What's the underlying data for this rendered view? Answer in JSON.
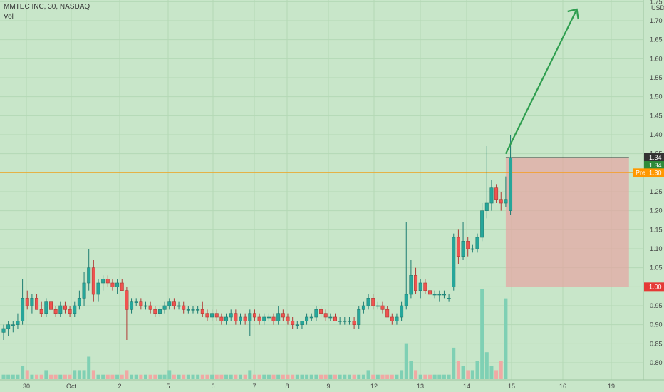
{
  "legend": {
    "symbol_line": "MMTEC INC, 30, NASDAQ",
    "vol_label": "Vol"
  },
  "price_axis": {
    "currency": "USD"
  },
  "tags": {
    "last_a": "1.34",
    "last_b": "1.34",
    "pre_label": "Pre",
    "pre_value": "1.30",
    "stop": "1.00"
  },
  "colors": {
    "up": "#26a69a",
    "down": "#ef5350",
    "background": "#c8e6c9",
    "arrow": "#2e9e4f",
    "pre": "#ff9800",
    "stop": "#e53935",
    "box": "#e8a0a0"
  },
  "chart_data": {
    "type": "candlestick",
    "ylim": [
      0.76,
      1.74
    ],
    "y_ticks": [
      0.8,
      0.85,
      0.9,
      0.95,
      1.0,
      1.05,
      1.1,
      1.15,
      1.2,
      1.25,
      1.3,
      1.35,
      1.4,
      1.45,
      1.5,
      1.55,
      1.6,
      1.65,
      1.7,
      1.75
    ],
    "x_tick_labels": [
      "30",
      "Oct",
      "2",
      "5",
      "6",
      "7",
      "8",
      "9",
      "12",
      "13",
      "14",
      "15",
      "16",
      "19"
    ],
    "candles": [
      {
        "o": 0.88,
        "h": 0.9,
        "l": 0.86,
        "c": 0.89
      },
      {
        "o": 0.89,
        "h": 0.91,
        "l": 0.87,
        "c": 0.9
      },
      {
        "o": 0.9,
        "h": 0.91,
        "l": 0.88,
        "c": 0.9
      },
      {
        "o": 0.9,
        "h": 0.93,
        "l": 0.89,
        "c": 0.91
      },
      {
        "o": 0.91,
        "h": 1.02,
        "l": 0.9,
        "c": 0.97
      },
      {
        "o": 0.97,
        "h": 0.99,
        "l": 0.94,
        "c": 0.95
      },
      {
        "o": 0.95,
        "h": 0.98,
        "l": 0.93,
        "c": 0.97
      },
      {
        "o": 0.97,
        "h": 0.98,
        "l": 0.94,
        "c": 0.94
      },
      {
        "o": 0.94,
        "h": 0.96,
        "l": 0.92,
        "c": 0.93
      },
      {
        "o": 0.93,
        "h": 0.97,
        "l": 0.92,
        "c": 0.96
      },
      {
        "o": 0.96,
        "h": 0.97,
        "l": 0.93,
        "c": 0.94
      },
      {
        "o": 0.94,
        "h": 0.95,
        "l": 0.92,
        "c": 0.93
      },
      {
        "o": 0.93,
        "h": 0.96,
        "l": 0.92,
        "c": 0.95
      },
      {
        "o": 0.95,
        "h": 0.96,
        "l": 0.93,
        "c": 0.94
      },
      {
        "o": 0.94,
        "h": 0.95,
        "l": 0.92,
        "c": 0.93
      },
      {
        "o": 0.93,
        "h": 0.96,
        "l": 0.92,
        "c": 0.95
      },
      {
        "o": 0.95,
        "h": 0.99,
        "l": 0.94,
        "c": 0.97
      },
      {
        "o": 0.97,
        "h": 1.04,
        "l": 0.95,
        "c": 1.01
      },
      {
        "o": 1.01,
        "h": 1.1,
        "l": 0.99,
        "c": 1.05
      },
      {
        "o": 1.05,
        "h": 1.07,
        "l": 0.96,
        "c": 0.98
      },
      {
        "o": 0.98,
        "h": 1.02,
        "l": 0.96,
        "c": 1.01
      },
      {
        "o": 1.01,
        "h": 1.03,
        "l": 0.99,
        "c": 1.02
      },
      {
        "o": 1.02,
        "h": 1.03,
        "l": 1.0,
        "c": 1.01
      },
      {
        "o": 1.01,
        "h": 1.02,
        "l": 0.99,
        "c": 1.0
      },
      {
        "o": 1.0,
        "h": 1.02,
        "l": 0.98,
        "c": 1.01
      },
      {
        "o": 1.01,
        "h": 1.02,
        "l": 0.99,
        "c": 0.99
      },
      {
        "o": 0.99,
        "h": 1.0,
        "l": 0.86,
        "c": 0.94
      },
      {
        "o": 0.94,
        "h": 0.97,
        "l": 0.93,
        "c": 0.96
      },
      {
        "o": 0.96,
        "h": 0.97,
        "l": 0.95,
        "c": 0.96
      },
      {
        "o": 0.96,
        "h": 0.97,
        "l": 0.94,
        "c": 0.95
      },
      {
        "o": 0.95,
        "h": 0.96,
        "l": 0.94,
        "c": 0.95
      },
      {
        "o": 0.95,
        "h": 0.96,
        "l": 0.93,
        "c": 0.94
      },
      {
        "o": 0.94,
        "h": 0.95,
        "l": 0.92,
        "c": 0.93
      },
      {
        "o": 0.93,
        "h": 0.95,
        "l": 0.92,
        "c": 0.94
      },
      {
        "o": 0.94,
        "h": 0.96,
        "l": 0.93,
        "c": 0.95
      },
      {
        "o": 0.95,
        "h": 0.97,
        "l": 0.94,
        "c": 0.96
      },
      {
        "o": 0.96,
        "h": 0.97,
        "l": 0.94,
        "c": 0.95
      },
      {
        "o": 0.95,
        "h": 0.96,
        "l": 0.94,
        "c": 0.95
      },
      {
        "o": 0.95,
        "h": 0.96,
        "l": 0.93,
        "c": 0.94
      },
      {
        "o": 0.94,
        "h": 0.95,
        "l": 0.93,
        "c": 0.94
      },
      {
        "o": 0.94,
        "h": 0.95,
        "l": 0.93,
        "c": 0.94
      },
      {
        "o": 0.94,
        "h": 0.95,
        "l": 0.93,
        "c": 0.94
      },
      {
        "o": 0.94,
        "h": 0.96,
        "l": 0.92,
        "c": 0.93
      },
      {
        "o": 0.93,
        "h": 0.94,
        "l": 0.91,
        "c": 0.92
      },
      {
        "o": 0.92,
        "h": 0.94,
        "l": 0.91,
        "c": 0.93
      },
      {
        "o": 0.93,
        "h": 0.94,
        "l": 0.91,
        "c": 0.92
      },
      {
        "o": 0.92,
        "h": 0.93,
        "l": 0.9,
        "c": 0.91
      },
      {
        "o": 0.91,
        "h": 0.93,
        "l": 0.9,
        "c": 0.92
      },
      {
        "o": 0.92,
        "h": 0.94,
        "l": 0.91,
        "c": 0.93
      },
      {
        "o": 0.93,
        "h": 0.94,
        "l": 0.9,
        "c": 0.91
      },
      {
        "o": 0.91,
        "h": 0.93,
        "l": 0.9,
        "c": 0.92
      },
      {
        "o": 0.92,
        "h": 0.93,
        "l": 0.9,
        "c": 0.91
      },
      {
        "o": 0.91,
        "h": 0.94,
        "l": 0.87,
        "c": 0.93
      },
      {
        "o": 0.93,
        "h": 0.94,
        "l": 0.91,
        "c": 0.92
      },
      {
        "o": 0.92,
        "h": 0.93,
        "l": 0.9,
        "c": 0.91
      },
      {
        "o": 0.91,
        "h": 0.93,
        "l": 0.9,
        "c": 0.92
      },
      {
        "o": 0.92,
        "h": 0.93,
        "l": 0.91,
        "c": 0.92
      },
      {
        "o": 0.92,
        "h": 0.93,
        "l": 0.9,
        "c": 0.91
      },
      {
        "o": 0.91,
        "h": 0.95,
        "l": 0.9,
        "c": 0.93
      },
      {
        "o": 0.93,
        "h": 0.94,
        "l": 0.91,
        "c": 0.92
      },
      {
        "o": 0.92,
        "h": 0.93,
        "l": 0.9,
        "c": 0.91
      },
      {
        "o": 0.91,
        "h": 0.92,
        "l": 0.89,
        "c": 0.9
      },
      {
        "o": 0.9,
        "h": 0.91,
        "l": 0.89,
        "c": 0.9
      },
      {
        "o": 0.9,
        "h": 0.91,
        "l": 0.89,
        "c": 0.91
      },
      {
        "o": 0.91,
        "h": 0.93,
        "l": 0.9,
        "c": 0.92
      },
      {
        "o": 0.92,
        "h": 0.93,
        "l": 0.91,
        "c": 0.92
      },
      {
        "o": 0.92,
        "h": 0.95,
        "l": 0.91,
        "c": 0.94
      },
      {
        "o": 0.94,
        "h": 0.95,
        "l": 0.92,
        "c": 0.93
      },
      {
        "o": 0.93,
        "h": 0.94,
        "l": 0.91,
        "c": 0.92
      },
      {
        "o": 0.92,
        "h": 0.93,
        "l": 0.91,
        "c": 0.92
      },
      {
        "o": 0.92,
        "h": 0.93,
        "l": 0.91,
        "c": 0.91
      },
      {
        "o": 0.91,
        "h": 0.92,
        "l": 0.9,
        "c": 0.91
      },
      {
        "o": 0.91,
        "h": 0.92,
        "l": 0.9,
        "c": 0.91
      },
      {
        "o": 0.91,
        "h": 0.92,
        "l": 0.9,
        "c": 0.91
      },
      {
        "o": 0.91,
        "h": 0.92,
        "l": 0.89,
        "c": 0.9
      },
      {
        "o": 0.9,
        "h": 0.95,
        "l": 0.89,
        "c": 0.94
      },
      {
        "o": 0.94,
        "h": 0.96,
        "l": 0.93,
        "c": 0.95
      },
      {
        "o": 0.95,
        "h": 0.98,
        "l": 0.94,
        "c": 0.97
      },
      {
        "o": 0.97,
        "h": 0.98,
        "l": 0.94,
        "c": 0.95
      },
      {
        "o": 0.95,
        "h": 0.96,
        "l": 0.94,
        "c": 0.95
      },
      {
        "o": 0.95,
        "h": 0.96,
        "l": 0.93,
        "c": 0.94
      },
      {
        "o": 0.94,
        "h": 0.95,
        "l": 0.92,
        "c": 0.92
      },
      {
        "o": 0.92,
        "h": 0.93,
        "l": 0.9,
        "c": 0.91
      },
      {
        "o": 0.91,
        "h": 0.93,
        "l": 0.9,
        "c": 0.92
      },
      {
        "o": 0.92,
        "h": 0.96,
        "l": 0.91,
        "c": 0.95
      },
      {
        "o": 0.95,
        "h": 1.17,
        "l": 0.94,
        "c": 0.98
      },
      {
        "o": 0.98,
        "h": 1.07,
        "l": 0.97,
        "c": 1.03
      },
      {
        "o": 1.03,
        "h": 1.05,
        "l": 0.98,
        "c": 0.99
      },
      {
        "o": 0.99,
        "h": 1.02,
        "l": 0.97,
        "c": 1.01
      },
      {
        "o": 1.01,
        "h": 1.02,
        "l": 0.98,
        "c": 0.99
      },
      {
        "o": 0.99,
        "h": 1.0,
        "l": 0.97,
        "c": 0.98
      },
      {
        "o": 0.98,
        "h": 0.99,
        "l": 0.97,
        "c": 0.98
      },
      {
        "o": 0.98,
        "h": 0.99,
        "l": 0.96,
        "c": 0.98
      },
      {
        "o": 0.98,
        "h": 0.99,
        "l": 0.97,
        "c": 0.98
      },
      {
        "o": 0.97,
        "h": 0.98,
        "l": 0.96,
        "c": 0.97
      },
      {
        "o": 1.0,
        "h": 1.14,
        "l": 0.99,
        "c": 1.13
      },
      {
        "o": 1.13,
        "h": 1.15,
        "l": 1.06,
        "c": 1.08
      },
      {
        "o": 1.08,
        "h": 1.17,
        "l": 1.07,
        "c": 1.12
      },
      {
        "o": 1.12,
        "h": 1.13,
        "l": 1.08,
        "c": 1.1
      },
      {
        "o": 1.1,
        "h": 1.11,
        "l": 1.09,
        "c": 1.1
      },
      {
        "o": 1.1,
        "h": 1.14,
        "l": 1.09,
        "c": 1.13
      },
      {
        "o": 1.13,
        "h": 1.22,
        "l": 1.12,
        "c": 1.2
      },
      {
        "o": 1.2,
        "h": 1.37,
        "l": 1.18,
        "c": 1.22
      },
      {
        "o": 1.22,
        "h": 1.28,
        "l": 1.2,
        "c": 1.26
      },
      {
        "o": 1.26,
        "h": 1.27,
        "l": 1.22,
        "c": 1.23
      },
      {
        "o": 1.23,
        "h": 1.25,
        "l": 1.2,
        "c": 1.22
      },
      {
        "o": 1.22,
        "h": 1.29,
        "l": 1.21,
        "c": 1.23
      },
      {
        "o": 1.2,
        "h": 1.4,
        "l": 1.19,
        "c": 1.34
      }
    ],
    "volume": [
      1,
      1,
      1,
      1,
      3,
      2,
      1,
      1,
      1,
      2,
      1,
      1,
      1,
      1,
      1,
      2,
      2,
      2,
      5,
      2,
      1,
      1,
      1,
      1,
      1,
      1,
      2,
      1,
      1,
      1,
      1,
      1,
      1,
      1,
      1,
      2,
      1,
      1,
      1,
      1,
      1,
      1,
      1,
      1,
      1,
      1,
      1,
      1,
      1,
      1,
      1,
      1,
      2,
      1,
      1,
      1,
      1,
      1,
      1,
      1,
      1,
      1,
      1,
      1,
      1,
      1,
      1,
      1,
      1,
      1,
      1,
      1,
      1,
      1,
      1,
      1,
      1,
      2,
      1,
      1,
      1,
      1,
      1,
      1,
      2,
      8,
      4,
      2,
      1,
      1,
      1,
      1,
      1,
      1,
      1,
      7,
      4,
      3,
      2,
      2,
      4,
      20,
      6,
      3,
      2,
      4,
      18
    ],
    "annotations": {
      "risk_box": {
        "top": 1.34,
        "bottom": 1.0,
        "from_index": 106,
        "to_index": 132
      },
      "arrow": {
        "from_index": 106,
        "from_price": 1.35,
        "to_index": 121,
        "to_price": 1.73
      },
      "pre_market_line": 1.3
    }
  }
}
